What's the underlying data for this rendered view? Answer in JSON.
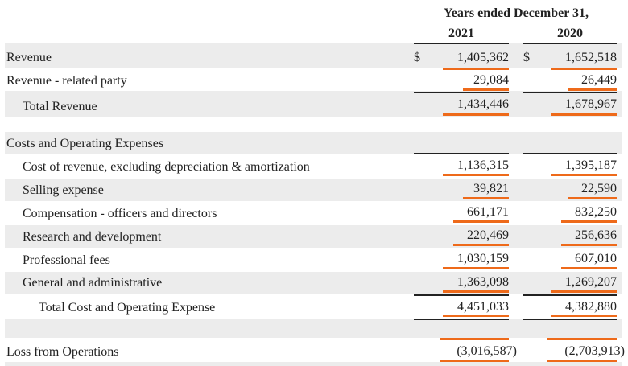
{
  "header": {
    "period_title": "Years ended December 31,",
    "year_2021": "2021",
    "year_2020": "2020"
  },
  "currency_symbol": "$",
  "rows": [
    {
      "label": "Revenue",
      "v2021": "1,405,362",
      "v2020": "1,652,518"
    },
    {
      "label": "Revenue - related party",
      "v2021": "29,084",
      "v2020": "26,449"
    },
    {
      "label": "Total Revenue",
      "v2021": "1,434,446",
      "v2020": "1,678,967"
    },
    {
      "label": "Costs and Operating Expenses"
    },
    {
      "label": "Cost of revenue, excluding depreciation & amortization",
      "v2021": "1,136,315",
      "v2020": "1,395,187"
    },
    {
      "label": "Selling expense",
      "v2021": "39,821",
      "v2020": "22,590"
    },
    {
      "label": "Compensation - officers and directors",
      "v2021": "661,171",
      "v2020": "832,250"
    },
    {
      "label": "Research and development",
      "v2021": "220,469",
      "v2020": "256,636"
    },
    {
      "label": "Professional fees",
      "v2021": "1,030,159",
      "v2020": "607,010"
    },
    {
      "label": "General and administrative",
      "v2021": "1,363,098",
      "v2020": "1,269,207"
    },
    {
      "label": "Total Cost and Operating Expense",
      "v2021": "4,451,033",
      "v2020": "4,382,880"
    },
    {
      "label": "Loss from Operations",
      "v2021": "(3,016,587)",
      "v2020": "(2,703,913)"
    }
  ],
  "colors": {
    "highlight_underline": "#ee6a1a",
    "band": "#ececec",
    "text": "#222222"
  }
}
